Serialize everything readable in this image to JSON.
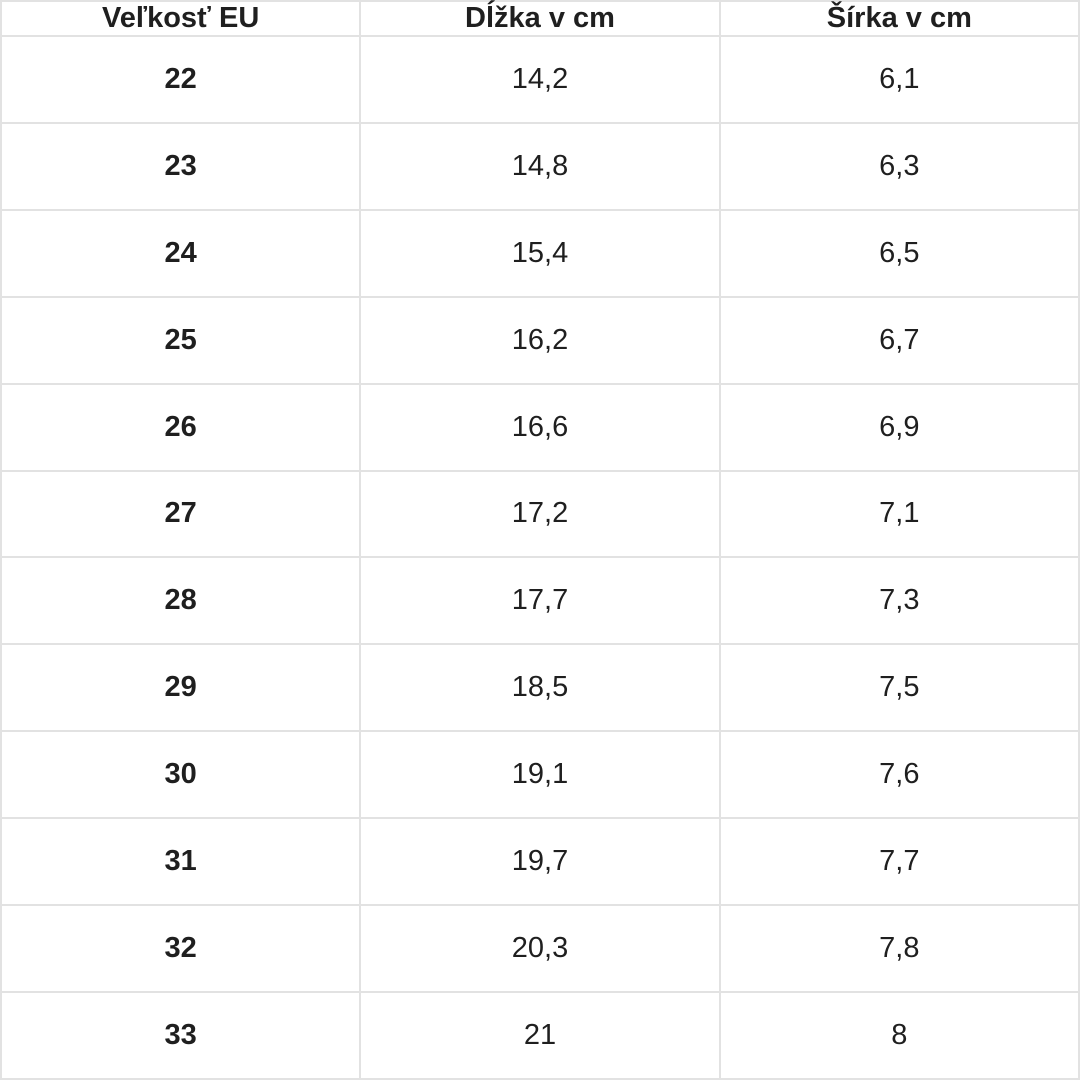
{
  "chart_data": {
    "type": "table",
    "columns": [
      "Veľkosť EU",
      "Dĺžka v cm",
      "Šírka v cm"
    ],
    "rows": [
      [
        "22",
        "14,2",
        "6,1"
      ],
      [
        "23",
        "14,8",
        "6,3"
      ],
      [
        "24",
        "15,4",
        "6,5"
      ],
      [
        "25",
        "16,2",
        "6,7"
      ],
      [
        "26",
        "16,6",
        "6,9"
      ],
      [
        "27",
        "17,2",
        "7,1"
      ],
      [
        "28",
        "17,7",
        "7,3"
      ],
      [
        "29",
        "18,5",
        "7,5"
      ],
      [
        "30",
        "19,1",
        "7,6"
      ],
      [
        "31",
        "19,7",
        "7,7"
      ],
      [
        "32",
        "20,3",
        "7,8"
      ],
      [
        "33",
        "21",
        "8"
      ]
    ]
  },
  "colors": {
    "border": "#e2e2e2",
    "text": "#1f1f1f",
    "background": "#ffffff"
  }
}
